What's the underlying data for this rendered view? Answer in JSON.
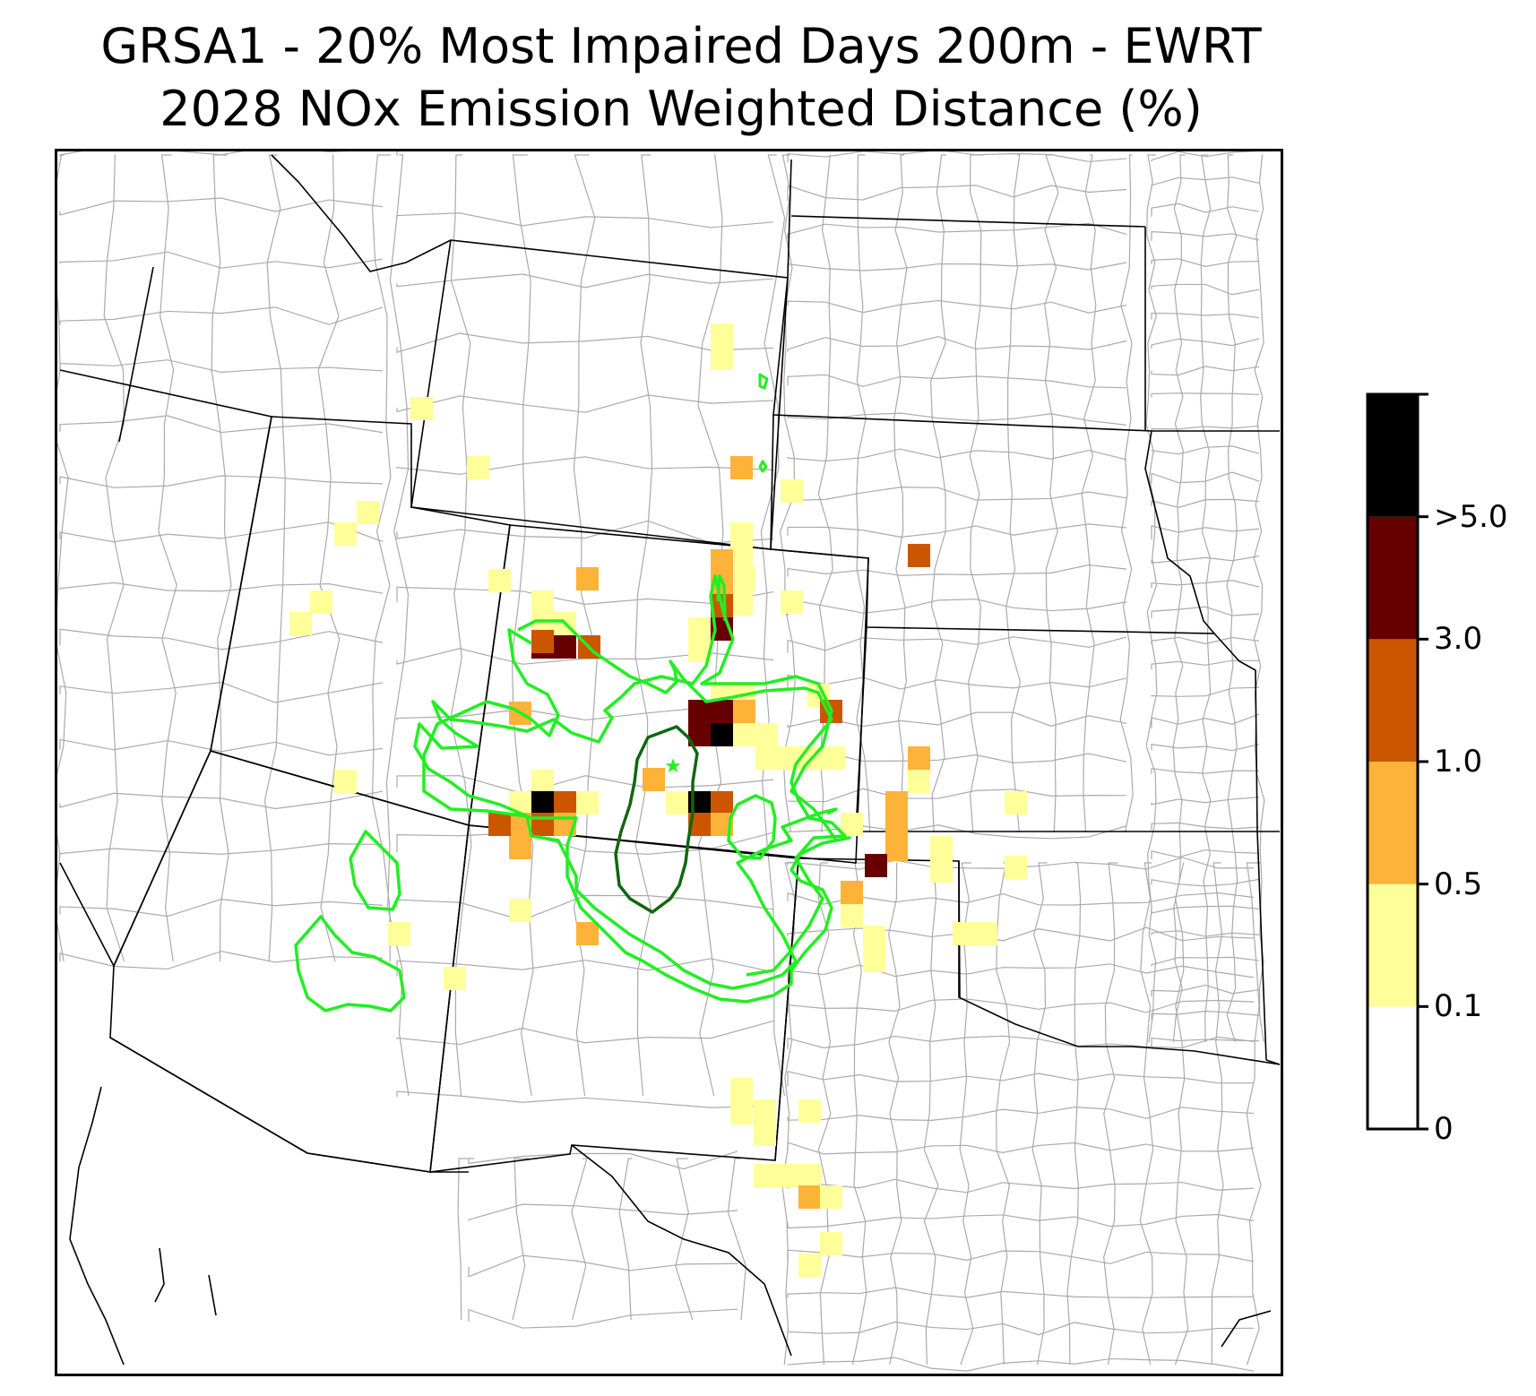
{
  "title": {
    "line1": "GRSA1 - 20% Most Impaired Days 200m - EWRT",
    "line2": "2028 NOx Emission Weighted Distance (%)"
  },
  "colorbar": {
    "bins": [
      {
        "label": "0",
        "color": "#ffffff"
      },
      {
        "label": "0.1",
        "color": "#ffff99"
      },
      {
        "label": "0.5",
        "color": "#fdb338"
      },
      {
        "label": "1.0",
        "color": "#cc5500"
      },
      {
        "label": "3.0",
        "color": "#660000"
      },
      {
        "label": ">5.0",
        "color": "#000000"
      }
    ]
  },
  "colors": {
    "contour_outer": "#22ee22",
    "contour_inner": "#116611",
    "state_border": "#000000",
    "county_border": "#aaaaaa",
    "site_marker": "#22ee22"
  },
  "site_marker_icon": "star-icon"
}
